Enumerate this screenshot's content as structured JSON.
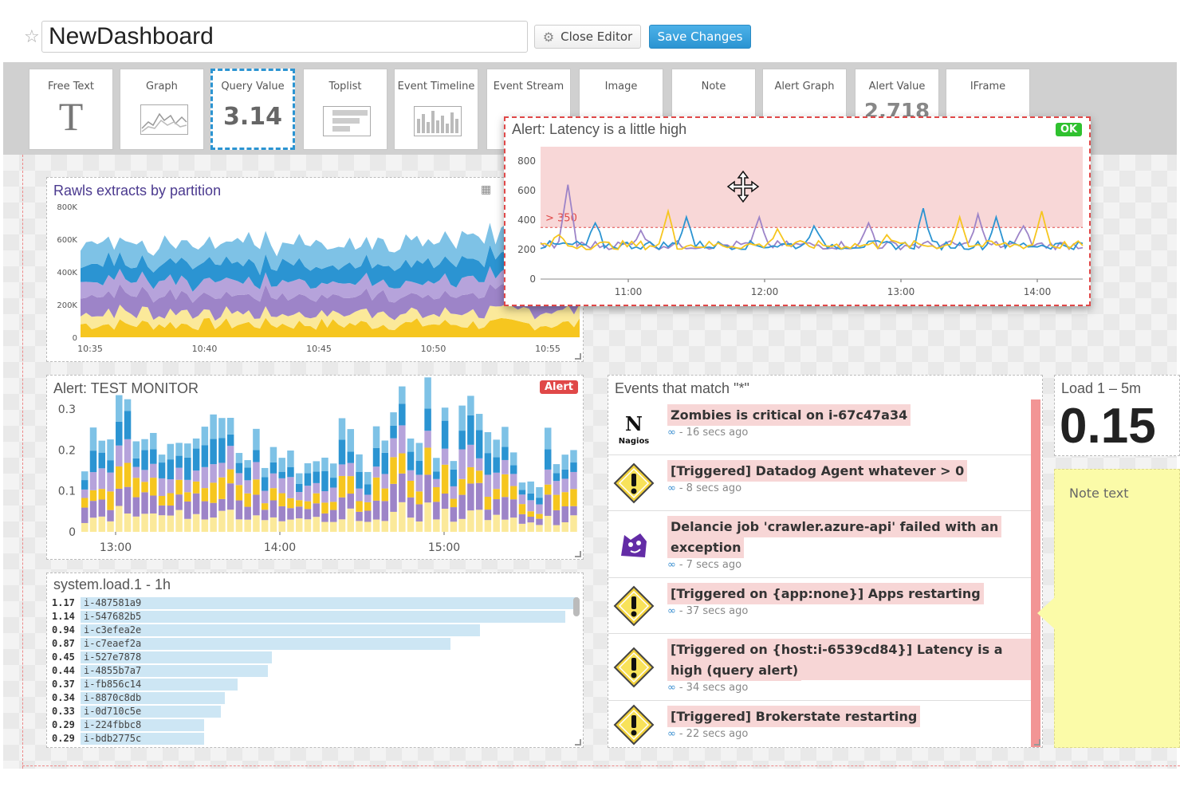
{
  "header": {
    "title": "NewDashboard",
    "close_editor_label": "Close Editor",
    "save_label": "Save Changes"
  },
  "palette": {
    "tiles": [
      {
        "label": "Free Text",
        "glyph": "T"
      },
      {
        "label": "Graph"
      },
      {
        "label": "Query Value",
        "glyph": "3.14"
      },
      {
        "label": "Toplist"
      },
      {
        "label": "Event Timeline"
      },
      {
        "label": "Event Stream"
      },
      {
        "label": "Image"
      },
      {
        "label": "Note"
      },
      {
        "label": "Alert Graph"
      },
      {
        "label": "Alert Value",
        "glyph": "2.718"
      },
      {
        "label": "IFrame"
      }
    ]
  },
  "widgets": {
    "rawls": {
      "title": "Rawls extracts by partition",
      "y_ticks": [
        "800K",
        "600K",
        "400K",
        "200K",
        "0"
      ],
      "x_ticks": [
        "10:35",
        "10:40",
        "10:45",
        "10:50",
        "10:55"
      ]
    },
    "alert_float": {
      "title": "Alert: Latency is a little high",
      "status": "OK",
      "threshold_label": "> 350",
      "y_ticks": [
        "800",
        "600",
        "400",
        "200",
        "0"
      ],
      "x_ticks": [
        "11:00",
        "12:00",
        "13:00",
        "14:00"
      ]
    },
    "test_monitor": {
      "title": "Alert: TEST MONITOR",
      "status": "Alert",
      "y_ticks": [
        "0.3",
        "0.2",
        "0.1",
        "0"
      ],
      "x_ticks": [
        "13:00",
        "14:00",
        "15:00"
      ]
    },
    "toplist": {
      "title": "system.load.1 - 1h",
      "rows": [
        {
          "value": "1.17",
          "host": "i-487581a9"
        },
        {
          "value": "1.14",
          "host": "i-547682b5"
        },
        {
          "value": "0.94",
          "host": "i-c3efea2e"
        },
        {
          "value": "0.87",
          "host": "i-c7eaef2a"
        },
        {
          "value": "0.45",
          "host": "i-527e7878"
        },
        {
          "value": "0.44",
          "host": "i-4855b7a7"
        },
        {
          "value": "0.37",
          "host": "i-fb856c14"
        },
        {
          "value": "0.34",
          "host": "i-8870c8db"
        },
        {
          "value": "0.33",
          "host": "i-0d710c5e"
        },
        {
          "value": "0.29",
          "host": "i-224fbbc8"
        },
        {
          "value": "0.29",
          "host": "i-bdb2775c"
        }
      ]
    },
    "events": {
      "title": "Events that match \"*\"",
      "items": [
        {
          "icon": "nagios-icon",
          "title": "Zombies is critical on i-67c47a34",
          "time": "- 16 secs ago"
        },
        {
          "icon": "warning-icon",
          "title": "[Triggered] Datadog Agent whatever > 0",
          "time": "- 8 secs ago"
        },
        {
          "icon": "datadog-icon",
          "title": "Delancie job 'crawler.azure-api' failed with an",
          "title2": "exception",
          "time": "- 7 secs ago"
        },
        {
          "icon": "warning-icon",
          "title": "[Triggered on {app:none}] Apps restarting",
          "time": "- 37 secs ago"
        },
        {
          "icon": "warning-icon",
          "title": "[Triggered on {host:i-6539cd84}] Latency is a little",
          "title2": "high (query alert)",
          "time": "- 34 secs ago"
        },
        {
          "icon": "warning-icon",
          "title": "[Triggered] Brokerstate restarting",
          "time": "- 22 secs ago"
        }
      ]
    },
    "load": {
      "title": "Load 1 – 5m",
      "value": "0.15"
    },
    "note": {
      "text": "Note text"
    }
  },
  "colors": {
    "accent": "#2b94d2",
    "alert_red": "#e04848",
    "ok_green": "#2fc12f",
    "note_yellow": "#fbfba8",
    "series": [
      "#f6c61f",
      "#9d84c8",
      "#2b94d2",
      "#7ec2e6",
      "#fbe99a"
    ]
  }
}
